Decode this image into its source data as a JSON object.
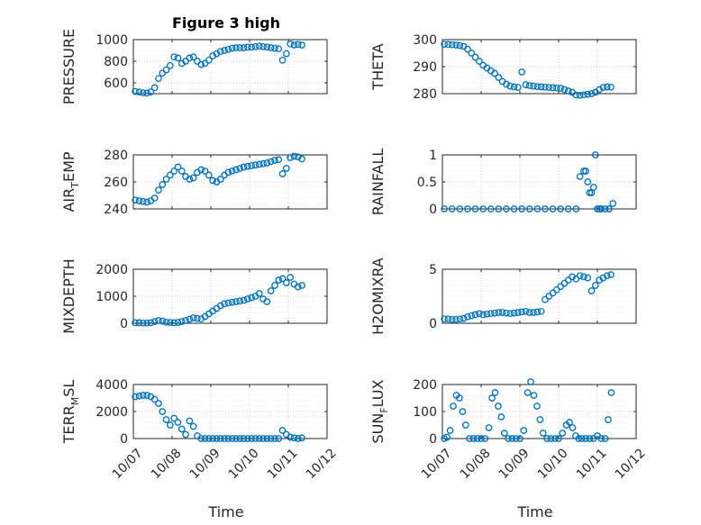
{
  "figure": {
    "marker_color": "#0072bd",
    "x_ticks": [
      "10/07",
      "10/08",
      "10/09",
      "10/10",
      "10/11",
      "10/12"
    ],
    "x_label": "Time"
  },
  "chart_data": [
    {
      "type": "scatter",
      "title": "Figure 3 high",
      "ylabel": "PRESSURE",
      "ylim": [
        500,
        1000
      ],
      "yticks": [
        600,
        800,
        1000
      ],
      "xlim": [
        0,
        5
      ],
      "x": [
        0.05,
        0.15,
        0.25,
        0.35,
        0.45,
        0.55,
        0.65,
        0.75,
        0.85,
        0.95,
        1.05,
        1.15,
        1.25,
        1.35,
        1.45,
        1.55,
        1.65,
        1.75,
        1.85,
        1.95,
        2.05,
        2.15,
        2.25,
        2.35,
        2.45,
        2.55,
        2.65,
        2.75,
        2.85,
        2.95,
        3.05,
        3.15,
        3.25,
        3.35,
        3.45,
        3.55,
        3.65,
        3.75,
        3.85,
        3.95,
        4.05,
        4.15,
        4.25,
        4.35
      ],
      "y": [
        520,
        515,
        508,
        505,
        515,
        555,
        640,
        690,
        720,
        760,
        840,
        830,
        780,
        800,
        830,
        840,
        800,
        770,
        780,
        810,
        850,
        870,
        890,
        900,
        910,
        920,
        925,
        925,
        925,
        930,
        930,
        935,
        940,
        935,
        930,
        925,
        920,
        915,
        810,
        870,
        960,
        950,
        955,
        950
      ]
    },
    {
      "type": "scatter",
      "ylabel": "THETA",
      "ylim": [
        280,
        300
      ],
      "yticks": [
        280,
        290,
        300
      ],
      "xlim": [
        0,
        5
      ],
      "x": [
        0.05,
        0.15,
        0.25,
        0.35,
        0.45,
        0.55,
        0.65,
        0.75,
        0.85,
        0.95,
        1.05,
        1.15,
        1.25,
        1.35,
        1.45,
        1.55,
        1.65,
        1.75,
        1.85,
        1.95,
        2.05,
        2.15,
        2.25,
        2.35,
        2.45,
        2.55,
        2.65,
        2.75,
        2.85,
        2.95,
        3.05,
        3.15,
        3.25,
        3.35,
        3.45,
        3.55,
        3.65,
        3.75,
        3.85,
        3.95,
        4.05,
        4.15,
        4.25,
        4.35
      ],
      "y": [
        298.3,
        298.2,
        298.1,
        298,
        297.8,
        297.5,
        296.5,
        295,
        293.5,
        292,
        290.5,
        289.5,
        288.5,
        287.5,
        286,
        284.5,
        283.5,
        282.8,
        282.5,
        282.3,
        288,
        283.3,
        283,
        282.8,
        282.6,
        282.5,
        282.4,
        282.3,
        282.2,
        282.1,
        282,
        281.5,
        281,
        280.5,
        279.5,
        279.4,
        279.6,
        279.8,
        280,
        280.5,
        281.5,
        282.3,
        282.5,
        282.4
      ]
    },
    {
      "type": "scatter",
      "ylabel": "AIR_TEMP",
      "ylim": [
        240,
        280
      ],
      "yticks": [
        240,
        260,
        280
      ],
      "xlim": [
        0,
        5
      ],
      "x": [
        0.05,
        0.15,
        0.25,
        0.35,
        0.45,
        0.55,
        0.65,
        0.75,
        0.85,
        0.95,
        1.05,
        1.15,
        1.25,
        1.35,
        1.45,
        1.55,
        1.65,
        1.75,
        1.85,
        1.95,
        2.05,
        2.15,
        2.25,
        2.35,
        2.45,
        2.55,
        2.65,
        2.75,
        2.85,
        2.95,
        3.05,
        3.15,
        3.25,
        3.35,
        3.45,
        3.55,
        3.65,
        3.75,
        3.85,
        3.95,
        4.05,
        4.15,
        4.25,
        4.35
      ],
      "y": [
        246.5,
        246,
        245.5,
        245,
        246,
        248,
        254,
        258,
        262,
        265,
        268,
        271,
        268,
        264,
        262,
        263,
        267,
        269,
        268,
        265,
        261,
        260,
        262,
        265,
        267,
        268,
        269,
        270,
        271,
        271.5,
        272,
        272.5,
        273,
        273.5,
        274,
        275,
        276,
        276.5,
        266,
        270,
        278,
        279,
        278.5,
        277
      ]
    },
    {
      "type": "scatter",
      "ylabel": "RAINFALL",
      "ylim": [
        0,
        1
      ],
      "yticks": [
        0,
        0.5,
        1
      ],
      "xlim": [
        0,
        5
      ],
      "x": [
        0.05,
        0.25,
        0.45,
        0.65,
        0.85,
        1.05,
        1.25,
        1.45,
        1.65,
        1.85,
        2.05,
        2.25,
        2.45,
        2.65,
        2.85,
        3.05,
        3.25,
        3.45,
        3.55,
        3.65,
        3.7,
        3.75,
        3.8,
        3.85,
        3.9,
        3.95,
        4.0,
        4.05,
        4.1,
        4.2,
        4.3,
        4.4
      ],
      "y": [
        0,
        0,
        0,
        0,
        0,
        0,
        0,
        0,
        0,
        0,
        0,
        0,
        0,
        0,
        0,
        0,
        0,
        0,
        0.6,
        0.7,
        0.7,
        0.5,
        0.3,
        0.3,
        0.4,
        1.0,
        0,
        0,
        0,
        0,
        0,
        0.1
      ]
    },
    {
      "type": "scatter",
      "ylabel": "MIXDEPTH",
      "ylim": [
        0,
        2000
      ],
      "yticks": [
        0,
        1000,
        2000
      ],
      "xlim": [
        0,
        5
      ],
      "x": [
        0.05,
        0.15,
        0.25,
        0.35,
        0.45,
        0.55,
        0.65,
        0.75,
        0.85,
        0.95,
        1.05,
        1.15,
        1.25,
        1.35,
        1.45,
        1.55,
        1.65,
        1.75,
        1.85,
        1.95,
        2.05,
        2.15,
        2.25,
        2.35,
        2.45,
        2.55,
        2.65,
        2.75,
        2.85,
        2.95,
        3.05,
        3.15,
        3.25,
        3.35,
        3.45,
        3.55,
        3.65,
        3.75,
        3.85,
        3.95,
        4.05,
        4.15,
        4.25,
        4.35
      ],
      "y": [
        20,
        20,
        10,
        10,
        20,
        60,
        100,
        80,
        40,
        30,
        20,
        30,
        60,
        100,
        150,
        200,
        180,
        160,
        250,
        350,
        450,
        550,
        650,
        720,
        750,
        780,
        800,
        820,
        850,
        900,
        950,
        1000,
        1100,
        900,
        800,
        1200,
        1400,
        1600,
        1650,
        1500,
        1700,
        1450,
        1350,
        1400
      ]
    },
    {
      "type": "scatter",
      "ylabel": "H2OMIXRA",
      "ylim": [
        0,
        5
      ],
      "yticks": [
        0,
        5
      ],
      "xlim": [
        0,
        5
      ],
      "x": [
        0.05,
        0.15,
        0.25,
        0.35,
        0.45,
        0.55,
        0.65,
        0.75,
        0.85,
        0.95,
        1.05,
        1.15,
        1.25,
        1.35,
        1.45,
        1.55,
        1.65,
        1.75,
        1.85,
        1.95,
        2.05,
        2.15,
        2.25,
        2.35,
        2.45,
        2.55,
        2.65,
        2.75,
        2.85,
        2.95,
        3.05,
        3.15,
        3.25,
        3.35,
        3.45,
        3.55,
        3.65,
        3.75,
        3.85,
        3.95,
        4.05,
        4.15,
        4.25,
        4.35
      ],
      "y": [
        0.4,
        0.4,
        0.35,
        0.35,
        0.4,
        0.45,
        0.6,
        0.7,
        0.8,
        0.9,
        0.8,
        0.85,
        0.9,
        0.95,
        1.0,
        1.0,
        0.95,
        0.9,
        0.95,
        1.0,
        1.05,
        1.1,
        1.0,
        1.0,
        1.05,
        1.1,
        2.2,
        2.5,
        2.8,
        3.1,
        3.4,
        3.7,
        4.0,
        4.3,
        4.1,
        4.4,
        4.3,
        4.2,
        3.0,
        3.5,
        4.0,
        4.2,
        4.4,
        4.5
      ]
    },
    {
      "type": "scatter",
      "ylabel": "TERR_MSL",
      "ylim": [
        0,
        4000
      ],
      "yticks": [
        0,
        2000,
        4000
      ],
      "xlim": [
        0,
        5
      ],
      "x": [
        0.05,
        0.15,
        0.25,
        0.35,
        0.45,
        0.55,
        0.65,
        0.75,
        0.85,
        0.95,
        1.05,
        1.15,
        1.25,
        1.35,
        1.45,
        1.55,
        1.65,
        1.75,
        1.85,
        1.95,
        2.05,
        2.15,
        2.25,
        2.35,
        2.45,
        2.55,
        2.65,
        2.75,
        2.85,
        2.95,
        3.05,
        3.15,
        3.25,
        3.35,
        3.45,
        3.55,
        3.65,
        3.75,
        3.85,
        3.95,
        4.05,
        4.15,
        4.25,
        4.35
      ],
      "y": [
        3100,
        3150,
        3200,
        3200,
        3100,
        2900,
        2600,
        2000,
        1400,
        1000,
        1500,
        1200,
        700,
        300,
        1300,
        900,
        200,
        0,
        0,
        0,
        0,
        0,
        0,
        0,
        0,
        0,
        0,
        0,
        0,
        0,
        0,
        0,
        0,
        0,
        0,
        0,
        0,
        0,
        600,
        300,
        100,
        50,
        0,
        50
      ]
    },
    {
      "type": "scatter",
      "ylabel": "SUN_FLUX",
      "ylim": [
        0,
        200
      ],
      "yticks": [
        0,
        100,
        200
      ],
      "xlim": [
        0,
        5
      ],
      "x": [
        0.05,
        0.12,
        0.2,
        0.28,
        0.36,
        0.44,
        0.52,
        0.6,
        0.7,
        0.8,
        0.9,
        1.0,
        1.1,
        1.2,
        1.28,
        1.36,
        1.44,
        1.52,
        1.6,
        1.7,
        1.8,
        1.9,
        2.0,
        2.1,
        2.2,
        2.28,
        2.36,
        2.44,
        2.52,
        2.6,
        2.7,
        2.8,
        2.9,
        3.0,
        3.1,
        3.2,
        3.28,
        3.36,
        3.44,
        3.52,
        3.6,
        3.7,
        3.8,
        3.9,
        4.0,
        4.1,
        4.2,
        4.28,
        4.36
      ],
      "y": [
        0,
        5,
        30,
        120,
        160,
        150,
        100,
        50,
        0,
        0,
        0,
        0,
        0,
        40,
        150,
        170,
        120,
        80,
        20,
        0,
        0,
        0,
        0,
        30,
        170,
        210,
        160,
        120,
        70,
        20,
        0,
        0,
        0,
        0,
        20,
        50,
        60,
        40,
        10,
        0,
        0,
        0,
        0,
        0,
        10,
        0,
        0,
        70,
        170
      ]
    }
  ]
}
